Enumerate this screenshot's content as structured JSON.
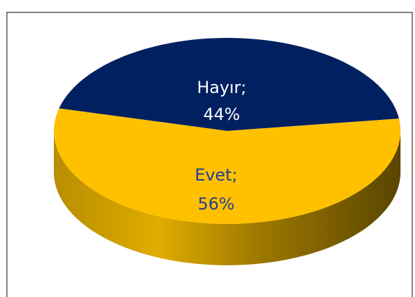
{
  "chart_data": {
    "type": "pie",
    "categories": [
      "Hayır;",
      "Evet;"
    ],
    "values": [
      44,
      56
    ],
    "value_labels": [
      "44%",
      "56%"
    ],
    "colors": [
      "#002060",
      "#FFC000"
    ],
    "label_colors": [
      "#ffffff",
      "#1f3f8f"
    ]
  }
}
